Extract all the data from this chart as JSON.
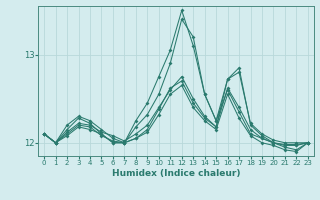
{
  "xlabel": "Humidex (Indice chaleur)",
  "xlim": [
    -0.5,
    23.5
  ],
  "ylim": [
    11.85,
    13.55
  ],
  "yticks": [
    12,
    13
  ],
  "xticks": [
    0,
    1,
    2,
    3,
    4,
    5,
    6,
    7,
    8,
    9,
    10,
    11,
    12,
    13,
    14,
    15,
    16,
    17,
    18,
    19,
    20,
    21,
    22,
    23
  ],
  "background_color": "#d4ecee",
  "grid_color": "#b8d8da",
  "line_color": "#2a7a6e",
  "lines": [
    {
      "x": [
        0,
        1,
        2,
        3,
        4,
        5,
        6,
        7,
        8,
        9,
        10,
        11,
        12,
        13,
        14,
        15,
        16,
        17,
        18,
        19,
        20,
        21,
        22,
        23
      ],
      "y": [
        12.1,
        12.0,
        12.2,
        12.3,
        12.25,
        12.15,
        12.05,
        12.0,
        12.25,
        12.45,
        12.75,
        13.05,
        13.5,
        13.1,
        12.55,
        12.25,
        12.6,
        12.35,
        12.1,
        12.05,
        12.0,
        11.98,
        11.98,
        12.0
      ]
    },
    {
      "x": [
        0,
        1,
        2,
        3,
        4,
        5,
        6,
        7,
        8,
        9,
        10,
        11,
        12,
        13,
        14,
        15,
        16,
        17,
        18,
        19,
        20,
        21,
        22,
        23
      ],
      "y": [
        12.1,
        12.0,
        12.15,
        12.28,
        12.22,
        12.1,
        12.0,
        12.0,
        12.18,
        12.32,
        12.55,
        12.9,
        13.4,
        13.2,
        12.55,
        12.25,
        12.72,
        12.85,
        12.2,
        12.08,
        12.0,
        11.97,
        11.97,
        12.0
      ]
    },
    {
      "x": [
        0,
        1,
        2,
        3,
        4,
        5,
        6,
        7,
        8,
        9,
        10,
        11,
        12,
        13,
        14,
        15,
        16,
        17,
        18,
        19,
        20,
        21,
        22,
        23
      ],
      "y": [
        12.1,
        12.0,
        12.12,
        12.22,
        12.2,
        12.12,
        12.08,
        12.02,
        12.1,
        12.2,
        12.4,
        12.6,
        12.75,
        12.5,
        12.3,
        12.18,
        12.72,
        12.8,
        12.22,
        12.1,
        12.03,
        12.0,
        12.0,
        12.0
      ]
    },
    {
      "x": [
        0,
        1,
        2,
        3,
        4,
        5,
        6,
        7,
        8,
        9,
        10,
        11,
        12,
        13,
        14,
        15,
        16,
        17,
        18,
        19,
        20,
        21,
        22,
        23
      ],
      "y": [
        12.1,
        12.0,
        12.1,
        12.2,
        12.18,
        12.08,
        12.02,
        12.0,
        12.05,
        12.15,
        12.38,
        12.62,
        12.7,
        12.45,
        12.28,
        12.18,
        12.62,
        12.4,
        12.15,
        12.05,
        12.0,
        11.95,
        11.92,
        12.0
      ]
    },
    {
      "x": [
        0,
        1,
        2,
        3,
        4,
        5,
        6,
        7,
        8,
        9,
        10,
        11,
        12,
        13,
        14,
        15,
        16,
        17,
        18,
        19,
        20,
        21,
        22,
        23
      ],
      "y": [
        12.1,
        12.0,
        12.08,
        12.18,
        12.15,
        12.1,
        12.0,
        12.0,
        12.05,
        12.12,
        12.32,
        12.55,
        12.65,
        12.4,
        12.25,
        12.15,
        12.55,
        12.28,
        12.08,
        12.0,
        11.97,
        11.92,
        11.9,
        12.0
      ]
    }
  ]
}
